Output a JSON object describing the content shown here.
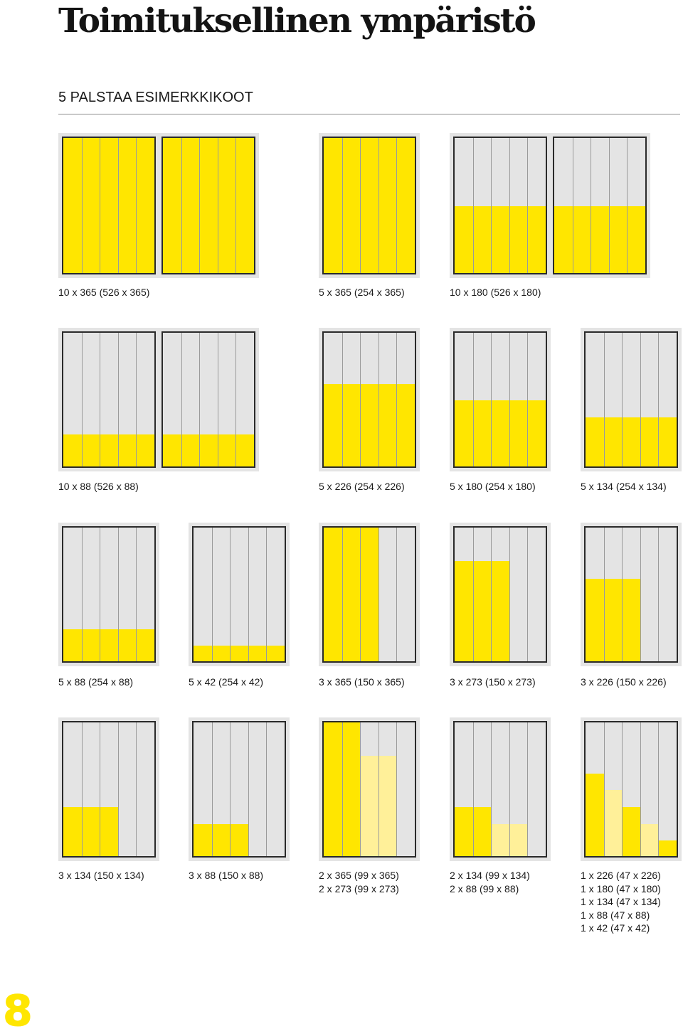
{
  "title": "Toimituksellinen ympäristö",
  "subtitle": "5 PALSTAA ESIMERKKIKOOT",
  "page_number": "8",
  "colors": {
    "ad_primary": "#ffe600",
    "ad_secondary": "#fff099",
    "page": "#e4e4e4"
  },
  "examples": [
    {
      "caption": [
        "10 x 365 (526 x 365)"
      ]
    },
    {
      "caption": [
        "5 x 365 (254 x 365)"
      ]
    },
    {
      "caption": [
        "10 x 180 (526 x 180)"
      ]
    },
    {
      "caption": [
        "10 x 88 (526 x 88)"
      ]
    },
    {
      "caption": [
        "5 x 226 (254 x 226)"
      ]
    },
    {
      "caption": [
        "5 x 180 (254 x 180)"
      ]
    },
    {
      "caption": [
        "5 x 134 (254 x 134)"
      ]
    },
    {
      "caption": [
        "5 x 88 (254 x 88)"
      ]
    },
    {
      "caption": [
        "5 x 42 (254 x 42)"
      ]
    },
    {
      "caption": [
        "3 x 365 (150 x 365)"
      ]
    },
    {
      "caption": [
        "3 x 273 (150 x 273)"
      ]
    },
    {
      "caption": [
        "3 x 226 (150 x 226)"
      ]
    },
    {
      "caption": [
        "3 x 134 (150 x 134)"
      ]
    },
    {
      "caption": [
        "3 x 88 (150 x 88)"
      ]
    },
    {
      "caption": [
        "2 x 365 (99 x 365)",
        "2 x 273 (99 x 273)"
      ]
    },
    {
      "caption": [
        "2 x 134 (99 x 134)",
        "2 x 88 (99 x 88)"
      ]
    },
    {
      "caption": [
        "1 x 226 (47 x 226)",
        "1 x 180 (47 x 180)",
        "1 x 134 (47 x 134)",
        "1 x 88 (47 x 88)",
        "1 x 42 (47 x 42)"
      ]
    }
  ]
}
